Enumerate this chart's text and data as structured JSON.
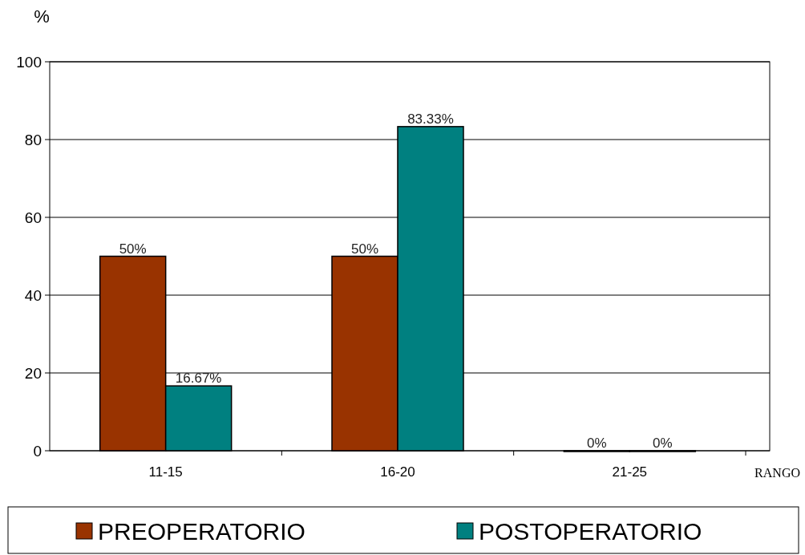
{
  "chart_data": {
    "type": "bar",
    "ylabel": "%",
    "xlabel": "RANGO",
    "categories": [
      "11-15",
      "16-20",
      "21-25"
    ],
    "series": [
      {
        "name": "PREOPERATORIO",
        "color": "#993300",
        "values": [
          50,
          50,
          0
        ],
        "value_labels": [
          "50%",
          "50%",
          "0%"
        ]
      },
      {
        "name": "POSTOPERATORIO",
        "color": "#008080",
        "values": [
          16.67,
          83.33,
          0
        ],
        "value_labels": [
          "16.67%",
          "83.33%",
          "0%"
        ]
      }
    ],
    "ylim": [
      0,
      100
    ],
    "yticks": [
      0,
      20,
      40,
      60,
      80,
      100
    ],
    "grid": "y",
    "legend": "bottom"
  }
}
